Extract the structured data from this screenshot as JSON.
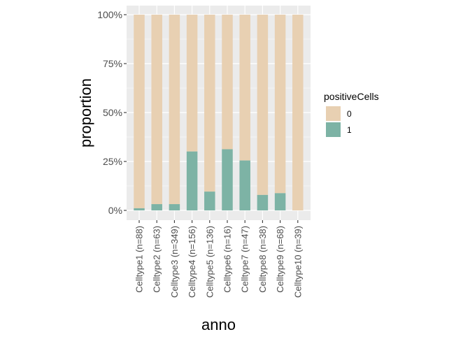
{
  "chart_data": {
    "type": "bar",
    "stacked": true,
    "title": "",
    "xlabel": "anno",
    "ylabel": "proportion",
    "ylim": [
      0,
      1
    ],
    "yticks": [
      0,
      0.25,
      0.5,
      0.75,
      1
    ],
    "ytick_labels": [
      "0%",
      "25%",
      "50%",
      "75%",
      "100%"
    ],
    "categories": [
      "Celltype1 (n=88)",
      "Celltype2 (n=63)",
      "Celltype3 (n=349)",
      "Celltype4 (n=156)",
      "Celltype5 (n=136)",
      "Celltype6 (n=16)",
      "Celltype7 (n=47)",
      "Celltype8 (n=38)",
      "Celltype9 (n=68)",
      "Celltype10 (n=39)"
    ],
    "series": [
      {
        "name": "0",
        "color": "#e8d0b2",
        "values": [
          0.989,
          0.968,
          0.968,
          0.699,
          0.904,
          0.6875,
          0.745,
          0.921,
          0.912,
          1.0
        ]
      },
      {
        "name": "1",
        "color": "#7db3a5",
        "values": [
          0.011,
          0.032,
          0.032,
          0.301,
          0.096,
          0.3125,
          0.255,
          0.079,
          0.088,
          0.0
        ]
      }
    ],
    "legend": {
      "title": "positiveCells",
      "position": "right"
    },
    "grid": true,
    "panel_color": "#ebebeb",
    "grid_color": "#ffffff"
  }
}
